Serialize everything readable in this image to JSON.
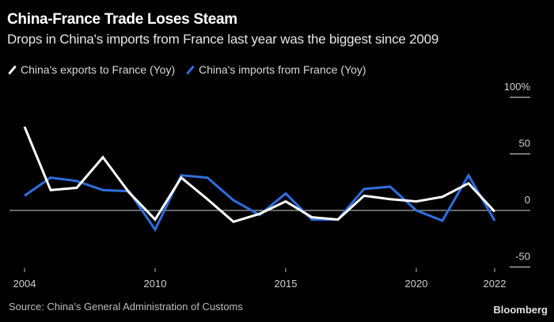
{
  "chart_data": {
    "type": "line",
    "title": "China-France Trade Loses Steam",
    "subtitle": "Drops in China's imports from France last year was the biggest since 2009",
    "xlabel": "",
    "ylabel": "",
    "x": [
      0,
      1,
      2,
      3,
      4,
      5,
      6,
      7,
      8,
      9,
      10,
      11,
      12,
      13,
      14,
      15,
      16,
      17,
      18
    ],
    "x_tick_labels": [
      {
        "index": 0,
        "label": "2004"
      },
      {
        "index": 5,
        "label": "2010"
      },
      {
        "index": 10,
        "label": "2015"
      },
      {
        "index": 15,
        "label": "2020"
      },
      {
        "index": 18,
        "label": "2022"
      }
    ],
    "ylim": [
      -50,
      100
    ],
    "y_ticks": [
      {
        "value": 100,
        "label": "100%"
      },
      {
        "value": 50,
        "label": "50"
      },
      {
        "value": 0,
        "label": "0"
      },
      {
        "value": -50,
        "label": "-50"
      }
    ],
    "zero_line": true,
    "legend_position": "top-left",
    "series": [
      {
        "name": "China's exports to France (Yoy)",
        "color": "#ffffff",
        "values": [
          74,
          18,
          20,
          47,
          16,
          -8,
          29,
          10,
          -10,
          -3,
          8,
          -6,
          -8,
          13,
          10,
          8,
          12,
          24,
          -1
        ]
      },
      {
        "name": "China's imports from France (Yoy)",
        "color": "#2f6fdf",
        "values": [
          13,
          29,
          26,
          18,
          17,
          -17,
          31,
          29,
          9,
          -4,
          15,
          -8,
          -8,
          19,
          21,
          0,
          -9,
          31,
          -9
        ]
      }
    ]
  },
  "footer": {
    "source": "Source: China's General Administration of Customs",
    "brand": "Bloomberg"
  }
}
